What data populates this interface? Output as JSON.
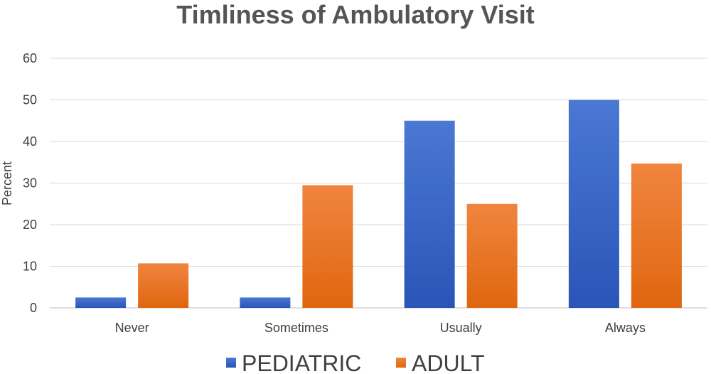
{
  "chart_data": {
    "type": "bar",
    "title": "Timliness of Ambulatory Visit",
    "xlabel": "",
    "ylabel": "Percent",
    "categories": [
      "Never",
      "Sometimes",
      "Usually",
      "Always"
    ],
    "series": [
      {
        "name": "PEDIATRIC",
        "color": "#3562c7",
        "values": [
          2.5,
          2.5,
          45,
          50
        ]
      },
      {
        "name": "ADULT",
        "color": "#ee7325",
        "values": [
          10.7,
          29.5,
          25,
          34.7
        ]
      }
    ],
    "ylim": [
      0,
      60
    ],
    "yticks": [
      "0",
      "10",
      "20",
      "30",
      "40",
      "50",
      "60"
    ],
    "grid": true,
    "legend_position": "bottom"
  }
}
